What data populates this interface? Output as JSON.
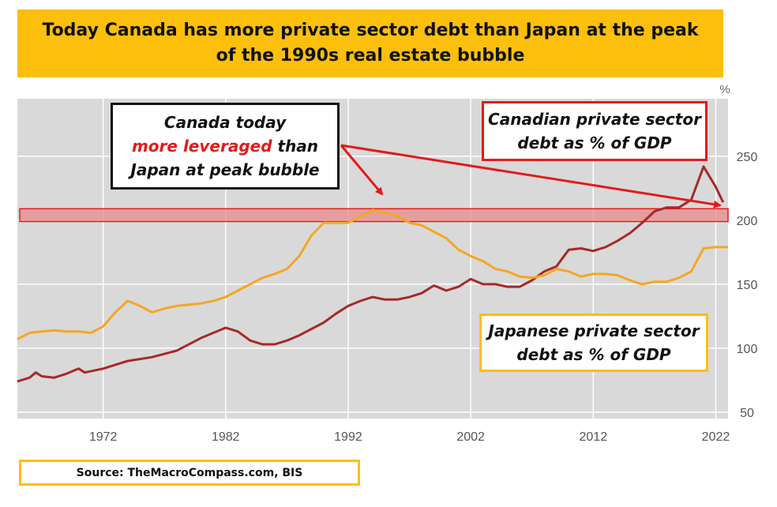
{
  "title": "Today Canada has more private sector debt than Japan at the peak of the 1990s real estate bubble",
  "source": "Source: TheMacroCompass.com, BIS",
  "annotations": {
    "canada_callout": {
      "line1": "Canada today",
      "line2_highlight": "more leveraged",
      "line2_rest": " than",
      "line3": "Japan at peak bubble"
    },
    "canadian_label": {
      "line1": "Canadian private sector",
      "line2": "debt as % of GDP"
    },
    "japanese_label": {
      "line1": "Japanese private sector",
      "line2": "debt as % of GDP"
    }
  },
  "colors": {
    "title_bg": "#fcbf0b",
    "plot_bg": "#d9d9d9",
    "canada_line": "#a52a2a",
    "japan_line": "#f5a623",
    "highlight_band": "#e88a8a",
    "arrow": "#e41a1a"
  },
  "chart_data": {
    "type": "line",
    "title": "",
    "xlabel": "",
    "ylabel": "%",
    "xlim": [
      1965,
      2023
    ],
    "ylim": [
      45,
      295
    ],
    "x_ticks": [
      1972,
      1982,
      1992,
      2002,
      2012,
      2022
    ],
    "y_ticks": [
      50,
      100,
      150,
      200,
      250
    ],
    "grid": true,
    "highlight_band": [
      199,
      209
    ],
    "series": [
      {
        "name": "Canadian private sector debt as % of GDP",
        "color": "#a52a2a",
        "points": [
          [
            1965,
            74
          ],
          [
            1966,
            77
          ],
          [
            1966.5,
            81
          ],
          [
            1967,
            78
          ],
          [
            1968,
            77
          ],
          [
            1969,
            80
          ],
          [
            1970,
            84
          ],
          [
            1970.5,
            81
          ],
          [
            1972,
            84
          ],
          [
            1974,
            90
          ],
          [
            1976,
            93
          ],
          [
            1978,
            98
          ],
          [
            1980,
            108
          ],
          [
            1982,
            116
          ],
          [
            1983,
            113
          ],
          [
            1984,
            106
          ],
          [
            1985,
            103
          ],
          [
            1986,
            103
          ],
          [
            1987,
            106
          ],
          [
            1988,
            110
          ],
          [
            1990,
            120
          ],
          [
            1991,
            127
          ],
          [
            1992,
            133
          ],
          [
            1993,
            137
          ],
          [
            1994,
            140
          ],
          [
            1995,
            138
          ],
          [
            1996,
            138
          ],
          [
            1997,
            140
          ],
          [
            1998,
            143
          ],
          [
            1999,
            149
          ],
          [
            2000,
            145
          ],
          [
            2001,
            148
          ],
          [
            2002,
            154
          ],
          [
            2003,
            150
          ],
          [
            2004,
            150
          ],
          [
            2005,
            148
          ],
          [
            2006,
            148
          ],
          [
            2007,
            153
          ],
          [
            2008,
            160
          ],
          [
            2009,
            164
          ],
          [
            2010,
            177
          ],
          [
            2011,
            178
          ],
          [
            2012,
            176
          ],
          [
            2013,
            179
          ],
          [
            2014,
            184
          ],
          [
            2015,
            190
          ],
          [
            2016,
            198
          ],
          [
            2017,
            207
          ],
          [
            2018,
            210
          ],
          [
            2019,
            210
          ],
          [
            2020,
            216
          ],
          [
            2021,
            242
          ],
          [
            2022,
            226
          ],
          [
            2022.6,
            214
          ]
        ]
      },
      {
        "name": "Japanese private sector debt as % of GDP",
        "color": "#f5a623",
        "points": [
          [
            1965,
            107
          ],
          [
            1966,
            112
          ],
          [
            1967,
            113
          ],
          [
            1968,
            114
          ],
          [
            1969,
            113
          ],
          [
            1970,
            113
          ],
          [
            1971,
            112
          ],
          [
            1972,
            117
          ],
          [
            1973,
            128
          ],
          [
            1974,
            137
          ],
          [
            1975,
            133
          ],
          [
            1976,
            128
          ],
          [
            1977,
            131
          ],
          [
            1978,
            133
          ],
          [
            1979,
            134
          ],
          [
            1980,
            135
          ],
          [
            1981,
            137
          ],
          [
            1982,
            140
          ],
          [
            1983,
            145
          ],
          [
            1984,
            150
          ],
          [
            1985,
            155
          ],
          [
            1986,
            158
          ],
          [
            1987,
            162
          ],
          [
            1988,
            172
          ],
          [
            1989,
            188
          ],
          [
            1990,
            198
          ],
          [
            1991,
            198
          ],
          [
            1992,
            198
          ],
          [
            1993,
            203
          ],
          [
            1994,
            208
          ],
          [
            1995,
            206
          ],
          [
            1996,
            203
          ],
          [
            1997,
            198
          ],
          [
            1998,
            196
          ],
          [
            1999,
            191
          ],
          [
            2000,
            186
          ],
          [
            2001,
            177
          ],
          [
            2002,
            172
          ],
          [
            2003,
            168
          ],
          [
            2004,
            162
          ],
          [
            2005,
            160
          ],
          [
            2006,
            156
          ],
          [
            2007,
            155
          ],
          [
            2008,
            157
          ],
          [
            2009,
            162
          ],
          [
            2010,
            160
          ],
          [
            2011,
            156
          ],
          [
            2012,
            158
          ],
          [
            2013,
            158
          ],
          [
            2014,
            157
          ],
          [
            2015,
            153
          ],
          [
            2016,
            150
          ],
          [
            2017,
            152
          ],
          [
            2018,
            152
          ],
          [
            2019,
            155
          ],
          [
            2020,
            160
          ],
          [
            2021,
            178
          ],
          [
            2022,
            179
          ],
          [
            2023,
            179
          ]
        ]
      }
    ]
  }
}
